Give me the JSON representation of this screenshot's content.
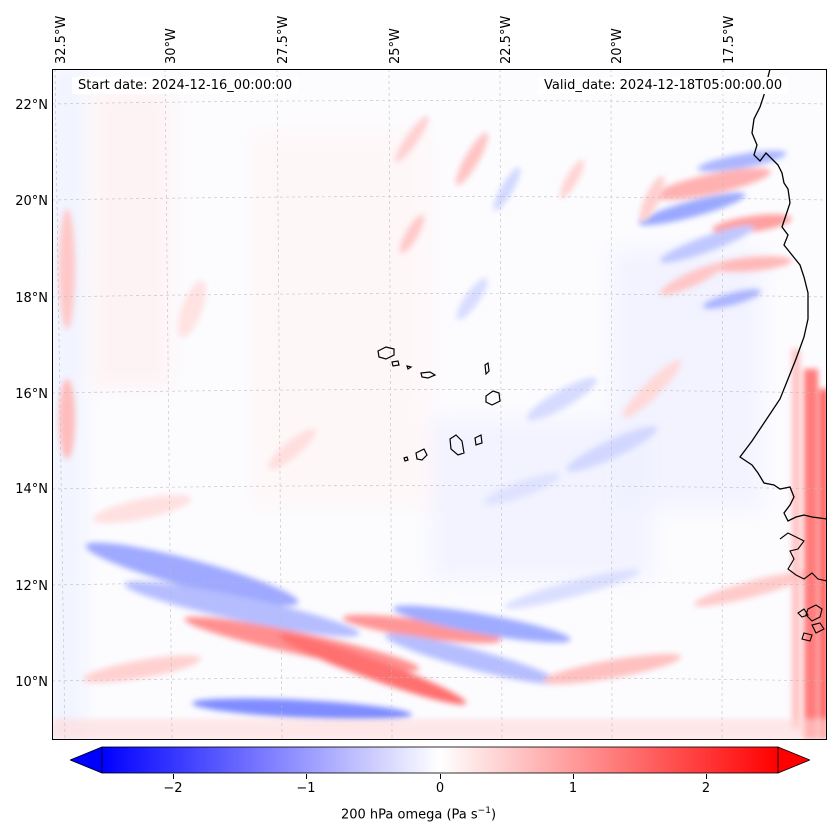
{
  "header": {
    "start_date": "Start date: 2024-12-16_00:00:00",
    "valid_date": "Valid_date: 2024-12-18T05:00:00.00"
  },
  "longitude_labels": [
    "32.5°W",
    "30°W",
    "27.5°W",
    "25°W",
    "22.5°W",
    "20°W",
    "17.5°W"
  ],
  "latitude_labels": [
    "22°N",
    "20°N",
    "18°N",
    "16°N",
    "14°N",
    "12°N",
    "10°N"
  ],
  "colorbar": {
    "ticks": [
      "−2",
      "−1",
      "0",
      "1",
      "2"
    ],
    "label_main": "200 hPa omega (Pa s",
    "label_sup": "−1",
    "label_end": ")",
    "min": -2.6,
    "max": 2.6,
    "cmap": "bwr",
    "colors": {
      "negative": "#0000ff",
      "zero": "#ffffff",
      "positive": "#ff0000"
    }
  },
  "map": {
    "extent_lon": [
      -33.0,
      -15.5
    ],
    "extent_lat": [
      8.8,
      22.8
    ],
    "gridlines": "dashed",
    "features": [
      "coastline-africa",
      "cape-verde-islands"
    ]
  }
}
